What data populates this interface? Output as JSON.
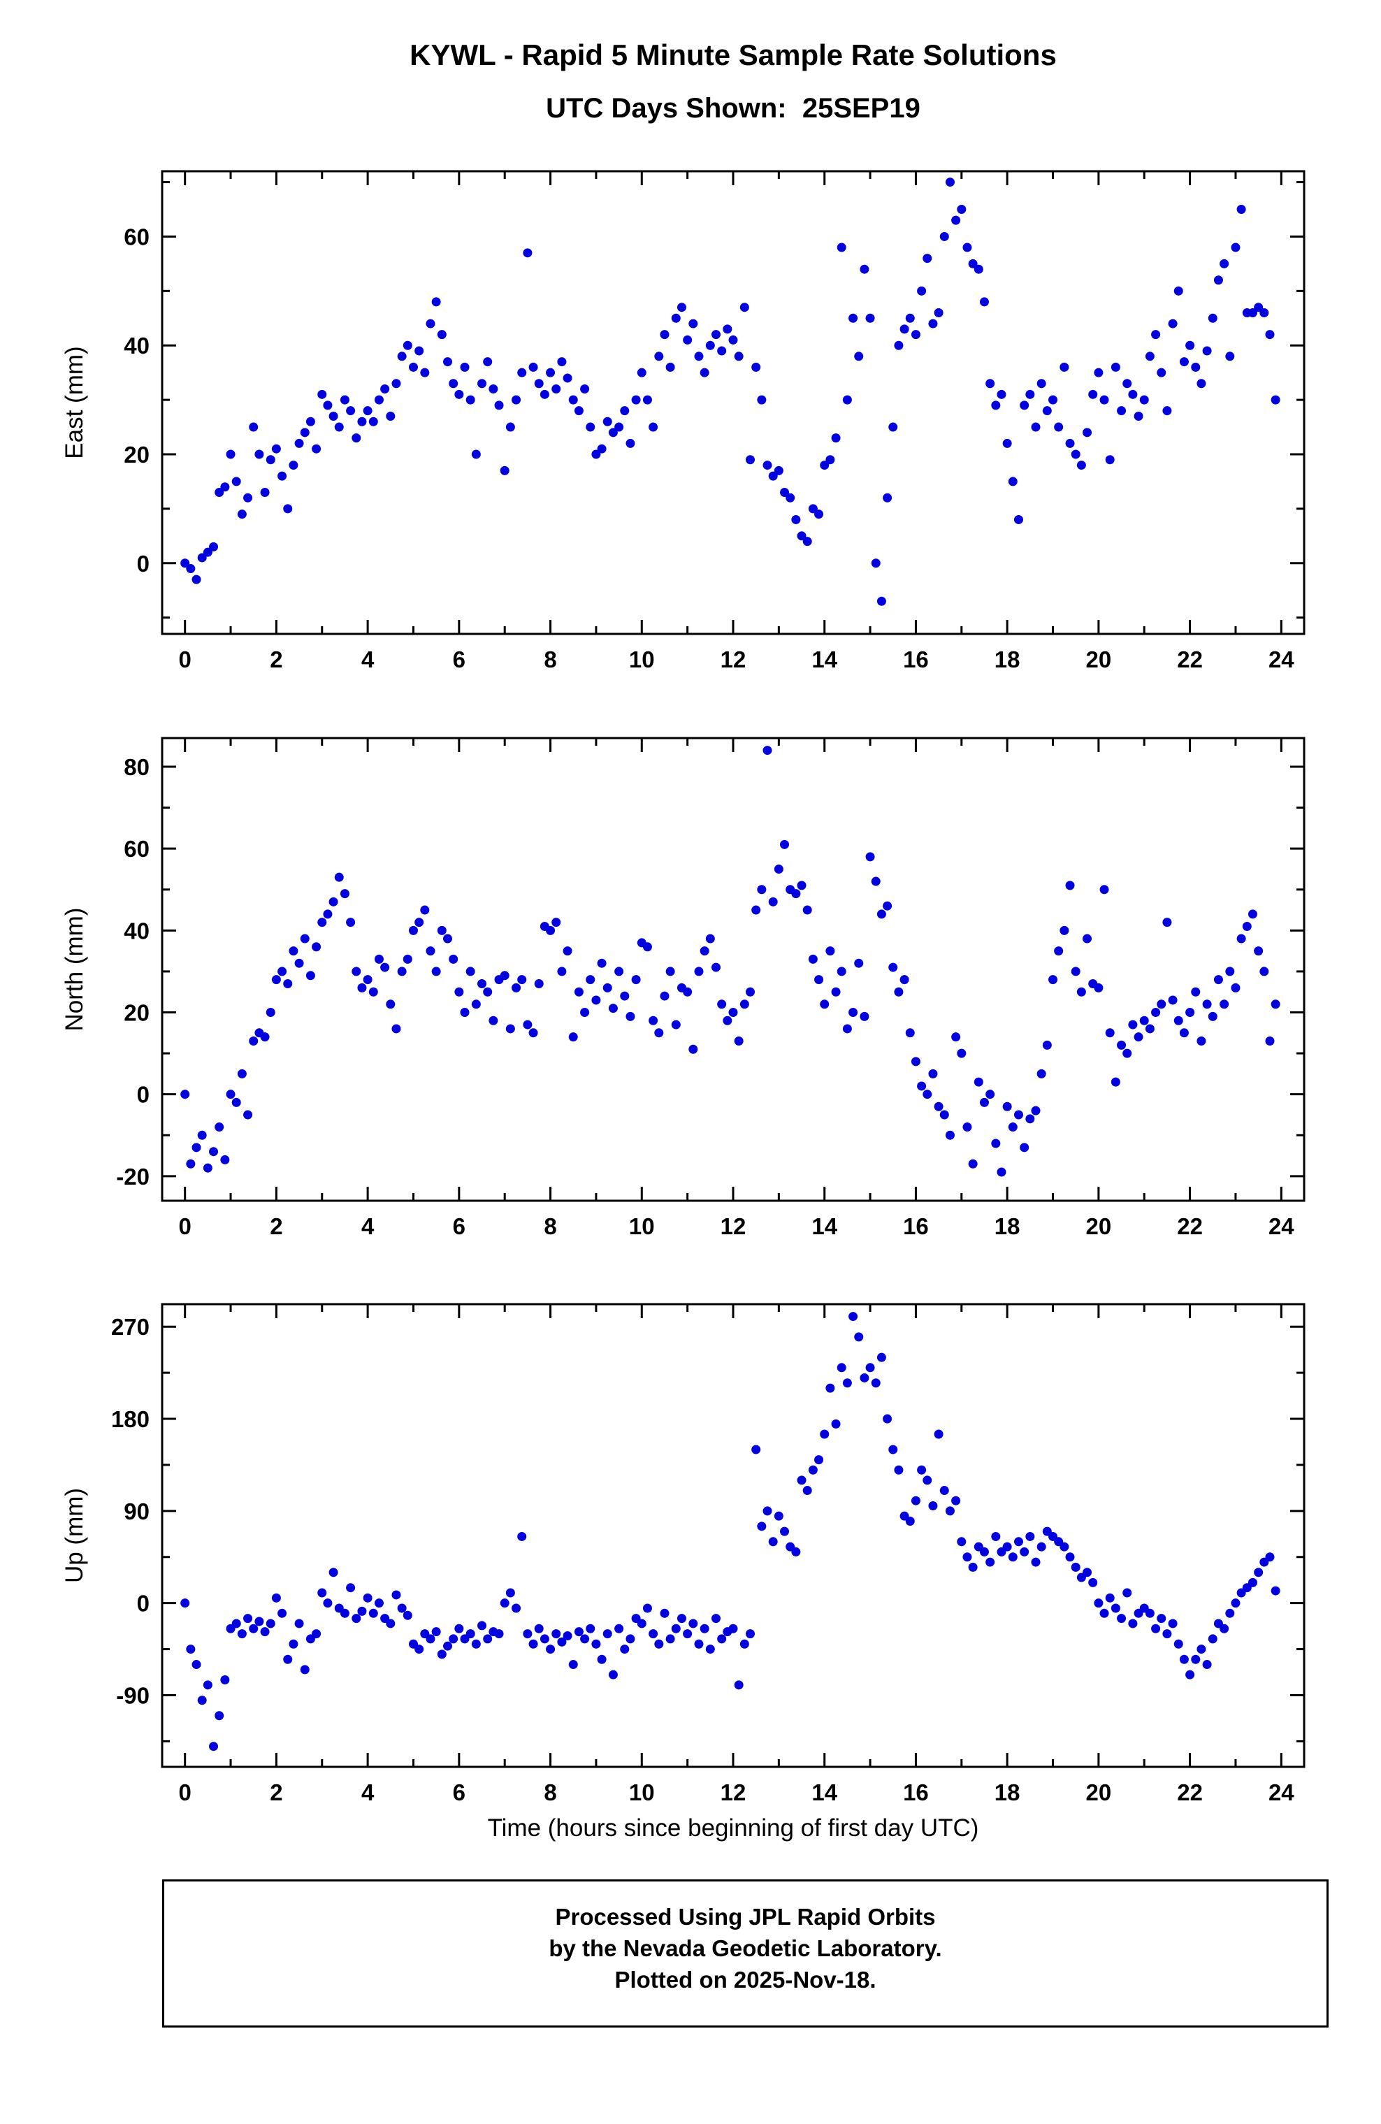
{
  "header": {
    "title": "KYWL - Rapid 5 Minute Sample Rate Solutions",
    "subtitle": "UTC Days Shown:  25SEP19"
  },
  "xlabel": "Time (hours since beginning of first day UTC)",
  "footer": {
    "line1": "Processed Using JPL Rapid Orbits",
    "line2": "by the Nevada Geodetic Laboratory.",
    "line3": "Plotted on 2025-Nov-18."
  },
  "marker_color": "#0000e0",
  "chart_data": [
    {
      "type": "scatter",
      "ylabel": "East (mm)",
      "ylim": [
        -13,
        72
      ],
      "yticks": [
        0,
        20,
        40,
        60
      ],
      "yminor": 10,
      "xlim": [
        -0.5,
        24.5
      ],
      "xticks": [
        0,
        2,
        4,
        6,
        8,
        10,
        12,
        14,
        16,
        18,
        20,
        22,
        24
      ],
      "xminor": 1,
      "x_start": 0,
      "x_step": 0.125,
      "values": [
        0,
        -1,
        -3,
        1,
        2,
        3,
        13,
        14,
        20,
        15,
        9,
        12,
        25,
        20,
        13,
        19,
        21,
        16,
        10,
        18,
        22,
        24,
        26,
        21,
        31,
        29,
        27,
        25,
        30,
        28,
        23,
        26,
        28,
        26,
        30,
        32,
        27,
        33,
        38,
        40,
        36,
        39,
        35,
        44,
        48,
        42,
        37,
        33,
        31,
        36,
        30,
        20,
        33,
        37,
        32,
        29,
        17,
        25,
        30,
        35,
        57,
        36,
        33,
        31,
        35,
        32,
        37,
        34,
        30,
        28,
        32,
        25,
        20,
        21,
        26,
        24,
        25,
        28,
        22,
        30,
        35,
        30,
        25,
        38,
        42,
        36,
        45,
        47,
        41,
        44,
        38,
        35,
        40,
        42,
        39,
        43,
        41,
        38,
        47,
        19,
        36,
        30,
        18,
        16,
        17,
        13,
        12,
        8,
        5,
        4,
        10,
        9,
        18,
        19,
        23,
        58,
        30,
        45,
        38,
        54,
        45,
        0,
        -7,
        12,
        25,
        40,
        43,
        45,
        42,
        50,
        56,
        44,
        46,
        60,
        70,
        63,
        65,
        58,
        55,
        54,
        48,
        33,
        29,
        31,
        22,
        15,
        8,
        29,
        31,
        25,
        33,
        28,
        30,
        25,
        36,
        22,
        20,
        18,
        24,
        31,
        35,
        30,
        19,
        36,
        28,
        33,
        31,
        27,
        30,
        38,
        42,
        35,
        28,
        44,
        50,
        37,
        40,
        36,
        33,
        39,
        45,
        52,
        55,
        38,
        58,
        65,
        46,
        46,
        47,
        46,
        42,
        30
      ]
    },
    {
      "type": "scatter",
      "ylabel": "North (mm)",
      "ylim": [
        -26,
        87
      ],
      "yticks": [
        -20,
        0,
        20,
        40,
        60,
        80
      ],
      "yminor": 10,
      "xlim": [
        -0.5,
        24.5
      ],
      "xticks": [
        0,
        2,
        4,
        6,
        8,
        10,
        12,
        14,
        16,
        18,
        20,
        22,
        24
      ],
      "xminor": 1,
      "x_start": 0,
      "x_step": 0.125,
      "values": [
        0,
        -17,
        -13,
        -10,
        -18,
        -14,
        -8,
        -16,
        0,
        -2,
        5,
        -5,
        13,
        15,
        14,
        20,
        28,
        30,
        27,
        35,
        32,
        38,
        29,
        36,
        42,
        44,
        47,
        53,
        49,
        42,
        30,
        26,
        28,
        25,
        33,
        31,
        22,
        16,
        30,
        33,
        40,
        42,
        45,
        35,
        30,
        40,
        38,
        33,
        25,
        20,
        30,
        22,
        27,
        25,
        18,
        28,
        29,
        16,
        26,
        28,
        17,
        15,
        27,
        41,
        40,
        42,
        30,
        35,
        14,
        25,
        20,
        28,
        23,
        32,
        26,
        21,
        30,
        24,
        19,
        28,
        37,
        36,
        18,
        15,
        24,
        30,
        17,
        26,
        25,
        11,
        30,
        35,
        38,
        31,
        22,
        18,
        20,
        13,
        22,
        25,
        45,
        50,
        84,
        47,
        55,
        61,
        50,
        49,
        51,
        45,
        33,
        28,
        22,
        35,
        25,
        30,
        16,
        20,
        32,
        19,
        58,
        52,
        44,
        46,
        31,
        25,
        28,
        15,
        8,
        2,
        0,
        5,
        -3,
        -5,
        -10,
        14,
        10,
        -8,
        -17,
        3,
        -2,
        0,
        -12,
        -19,
        -3,
        -8,
        -5,
        -13,
        -6,
        -4,
        5,
        12,
        28,
        35,
        40,
        51,
        30,
        25,
        38,
        27,
        26,
        50,
        15,
        3,
        12,
        10,
        17,
        14,
        18,
        16,
        20,
        22,
        42,
        23,
        18,
        15,
        20,
        25,
        13,
        22,
        19,
        28,
        22,
        30,
        26,
        38,
        41,
        44,
        35,
        30,
        13,
        22
      ]
    },
    {
      "type": "scatter",
      "ylabel": "Up (mm)",
      "ylim": [
        -160,
        292
      ],
      "yticks": [
        -90,
        0,
        90,
        180,
        270
      ],
      "yminor": 45,
      "xlim": [
        -0.5,
        24.5
      ],
      "xticks": [
        0,
        2,
        4,
        6,
        8,
        10,
        12,
        14,
        16,
        18,
        20,
        22,
        24
      ],
      "xminor": 1,
      "x_start": 0,
      "x_step": 0.125,
      "values": [
        0,
        -45,
        -60,
        -95,
        -80,
        -140,
        -110,
        -75,
        -25,
        -20,
        -30,
        -15,
        -25,
        -18,
        -28,
        -20,
        5,
        -10,
        -55,
        -40,
        -20,
        -65,
        -35,
        -30,
        10,
        0,
        30,
        -5,
        -10,
        15,
        -15,
        -8,
        5,
        -10,
        0,
        -15,
        -20,
        8,
        -5,
        -12,
        -40,
        -45,
        -30,
        -35,
        -28,
        -50,
        -42,
        -35,
        -25,
        -35,
        -30,
        -40,
        -22,
        -35,
        -28,
        -30,
        0,
        10,
        -5,
        65,
        -30,
        -40,
        -25,
        -35,
        -45,
        -30,
        -38,
        -32,
        -60,
        -28,
        -35,
        -25,
        -40,
        -55,
        -30,
        -70,
        -25,
        -45,
        -35,
        -15,
        -20,
        -5,
        -30,
        -40,
        -10,
        -35,
        -25,
        -15,
        -30,
        -20,
        -40,
        -25,
        -45,
        -15,
        -35,
        -28,
        -25,
        -80,
        -40,
        -30,
        150,
        75,
        90,
        60,
        85,
        70,
        55,
        50,
        120,
        110,
        130,
        140,
        165,
        210,
        175,
        230,
        215,
        280,
        260,
        220,
        230,
        215,
        240,
        180,
        150,
        130,
        85,
        80,
        100,
        130,
        120,
        95,
        165,
        110,
        90,
        100,
        60,
        45,
        35,
        55,
        50,
        40,
        65,
        50,
        55,
        45,
        60,
        50,
        65,
        40,
        55,
        70,
        65,
        60,
        55,
        45,
        35,
        25,
        30,
        20,
        0,
        -10,
        5,
        -5,
        -15,
        10,
        -20,
        -10,
        -5,
        -10,
        -25,
        -15,
        -30,
        -20,
        -40,
        -55,
        -70,
        -55,
        -45,
        -60,
        -35,
        -20,
        -25,
        -10,
        0,
        10,
        15,
        20,
        30,
        40,
        45,
        12
      ]
    }
  ]
}
